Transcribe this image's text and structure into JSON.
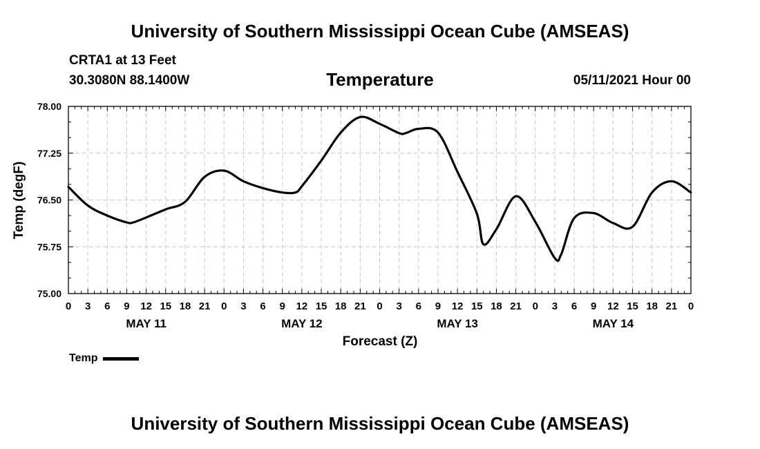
{
  "header": {
    "title": "University of Southern Mississippi Ocean Cube (AMSEAS)",
    "station": "CRTA1 at 13 Feet",
    "coords": "30.3080N  88.1400W",
    "datetime": "05/11/2021 Hour 00"
  },
  "footer": {
    "title": "University of Southern Mississippi Ocean Cube (AMSEAS)"
  },
  "legend": {
    "label": "Temp"
  },
  "colors": {
    "series": "#000000",
    "grid": "#c8c8c8",
    "background": "#ffffff"
  },
  "chart_data": {
    "type": "line",
    "title": "Temperature",
    "xlabel": "Forecast (Z)",
    "ylabel": "Temp (degF)",
    "ylim": [
      75.0,
      78.0
    ],
    "yticks": [
      "75.00",
      "75.75",
      "76.50",
      "77.25",
      "78.00"
    ],
    "xlim_hours": [
      0,
      96
    ],
    "xtick_labels": [
      "0",
      "3",
      "6",
      "9",
      "12",
      "15",
      "18",
      "21",
      "0",
      "3",
      "6",
      "9",
      "12",
      "15",
      "18",
      "21",
      "0",
      "3",
      "6",
      "9",
      "12",
      "15",
      "18",
      "21",
      "0",
      "3",
      "6",
      "9",
      "12",
      "15",
      "18",
      "21",
      "0"
    ],
    "date_labels": [
      {
        "label": "MAY 11",
        "hour": 12
      },
      {
        "label": "MAY 12",
        "hour": 36
      },
      {
        "label": "MAY 13",
        "hour": 60
      },
      {
        "label": "MAY 14",
        "hour": 84
      }
    ],
    "grid": true,
    "series": [
      {
        "name": "Temp",
        "x": [
          0,
          3,
          6,
          9,
          10,
          12,
          15,
          18,
          21,
          24,
          27,
          30,
          33,
          35,
          36,
          39,
          42,
          45,
          48,
          51,
          52,
          54,
          57,
          60,
          63,
          64,
          66,
          69,
          72,
          75,
          76,
          78,
          81,
          84,
          87,
          90,
          93,
          96
        ],
        "y": [
          76.71,
          76.41,
          76.25,
          76.14,
          76.14,
          76.22,
          76.35,
          76.47,
          76.87,
          76.97,
          76.8,
          76.69,
          76.62,
          76.62,
          76.72,
          77.13,
          77.58,
          77.83,
          77.72,
          77.57,
          77.57,
          77.64,
          77.58,
          76.95,
          76.28,
          75.79,
          76.03,
          76.56,
          76.15,
          75.57,
          75.63,
          76.21,
          76.29,
          76.13,
          76.07,
          76.62,
          76.8,
          76.62
        ]
      }
    ]
  }
}
